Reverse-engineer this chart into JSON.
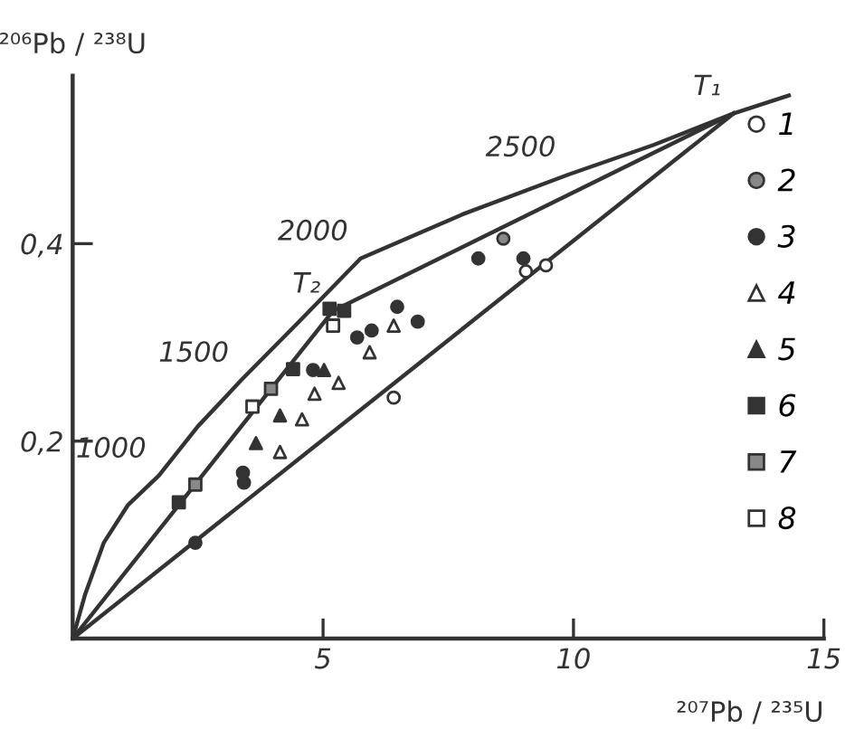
{
  "chart_data": {
    "type": "scatter",
    "xlabel": "²⁰⁷Pb / ²³⁵U",
    "ylabel": "²⁰⁶Pb / ²³⁸U",
    "xlim": [
      0,
      15
    ],
    "ylim": [
      0,
      0.57
    ],
    "xticks": [
      5,
      10,
      15
    ],
    "yticks": [
      {
        "value": 0.2,
        "label": "0,2"
      },
      {
        "value": 0.4,
        "label": "0,4"
      }
    ],
    "grid": false,
    "legend": "right",
    "series": [
      {
        "type": "line",
        "color": "#333333",
        "x": [
          0,
          0.25,
          0.62,
          1.1,
          1.72,
          2.5,
          3.37,
          4.5,
          5.75,
          7.8,
          9.9,
          11.6,
          13.2,
          14.3
        ],
        "values": [
          0,
          0.045,
          0.097,
          0.135,
          0.165,
          0.215,
          0.262,
          0.32,
          0.385,
          0.43,
          0.47,
          0.5,
          0.532,
          0.55
        ]
      },
      {
        "type": "line",
        "color": "#333333",
        "x": [
          0,
          5.2,
          13.2
        ],
        "values": [
          0,
          0.332,
          0.532
        ]
      },
      {
        "type": "line",
        "color": "#333333",
        "x": [
          0,
          13.2
        ],
        "values": [
          0,
          0.532
        ]
      },
      {
        "name": "1",
        "marker": "circle",
        "color": "#ffffff",
        "x": [
          6.41,
          9.05,
          9.45
        ],
        "values": [
          0.244,
          0.372,
          0.378
        ]
      },
      {
        "name": "2",
        "marker": "circle",
        "color": "#888888",
        "x": [
          8.6
        ],
        "values": [
          0.405
        ]
      },
      {
        "name": "3",
        "marker": "circle",
        "color": "#333333",
        "x": [
          8.1,
          9.0,
          6.48,
          6.89,
          5.97,
          5.68,
          3.4,
          3.42,
          2.45,
          4.8
        ],
        "values": [
          0.385,
          0.385,
          0.336,
          0.321,
          0.312,
          0.305,
          0.168,
          0.158,
          0.097,
          0.272
        ]
      },
      {
        "name": "4",
        "marker": "triangle",
        "color": "#ffffff",
        "x": [
          5.31,
          4.83,
          4.58,
          4.14,
          5.93,
          6.41
        ],
        "values": [
          0.259,
          0.248,
          0.222,
          0.189,
          0.29,
          0.317
        ]
      },
      {
        "name": "5",
        "marker": "triangle",
        "color": "#333333",
        "x": [
          4.14,
          3.66,
          5.02
        ],
        "values": [
          0.226,
          0.198,
          0.272
        ]
      },
      {
        "name": "6",
        "marker": "square",
        "color": "#333333",
        "x": [
          2.12,
          4.4,
          5.13,
          5.42
        ],
        "values": [
          0.138,
          0.273,
          0.334,
          0.332
        ]
      },
      {
        "name": "7",
        "marker": "square",
        "color": "#888888",
        "x": [
          2.45,
          3.96
        ],
        "values": [
          0.156,
          0.253
        ]
      },
      {
        "name": "8",
        "marker": "square",
        "color": "#ffffff",
        "x": [
          3.59,
          5.2
        ],
        "values": [
          0.235,
          0.317
        ]
      }
    ],
    "annotations": [
      {
        "text": "1000",
        "x": 1.72,
        "y": 0.165
      },
      {
        "text": "1500",
        "x": 3.37,
        "y": 0.262
      },
      {
        "text": "2000",
        "x": 5.75,
        "y": 0.385
      },
      {
        "text": "2500",
        "x": 9.9,
        "y": 0.47
      },
      {
        "text": "T₂",
        "x": 5.2,
        "y": 0.332
      },
      {
        "text": "T₁",
        "x": 13.2,
        "y": 0.532
      }
    ]
  }
}
